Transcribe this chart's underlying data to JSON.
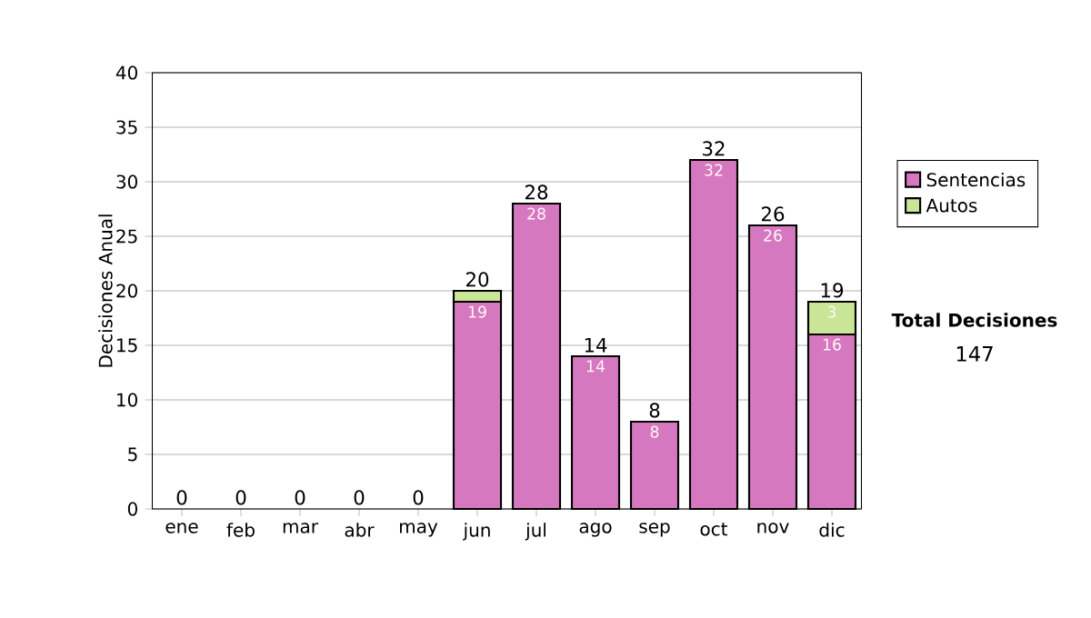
{
  "chart_data": {
    "type": "bar",
    "stacked": true,
    "ylabel": "Decisiones Anual",
    "categories": [
      "ene",
      "feb",
      "mar",
      "abr",
      "may",
      "jun",
      "jul",
      "ago",
      "sep",
      "oct",
      "nov",
      "dic"
    ],
    "series": [
      {
        "name": "Sentencias",
        "color": "#d678bf",
        "values": [
          0,
          0,
          0,
          0,
          0,
          19,
          28,
          14,
          8,
          32,
          26,
          16
        ],
        "value_labels": [
          null,
          null,
          null,
          null,
          null,
          "19",
          "28",
          "14",
          "8",
          "32",
          "26",
          "16"
        ]
      },
      {
        "name": "Autos",
        "color": "#c8e696",
        "values": [
          0,
          0,
          0,
          0,
          0,
          1,
          0,
          0,
          0,
          0,
          0,
          3
        ],
        "value_labels": [
          null,
          null,
          null,
          null,
          null,
          null,
          null,
          null,
          null,
          null,
          null,
          "3"
        ]
      }
    ],
    "totals": [
      "0",
      "0",
      "0",
      "0",
      "0",
      "20",
      "28",
      "14",
      "8",
      "32",
      "26",
      "19"
    ],
    "ylim": [
      0,
      40
    ],
    "yticks": [
      0,
      5,
      10,
      15,
      20,
      25,
      30,
      35,
      40
    ],
    "grid": "y",
    "legend": "right",
    "annotations": [
      "Total Decisiones",
      "147"
    ]
  }
}
